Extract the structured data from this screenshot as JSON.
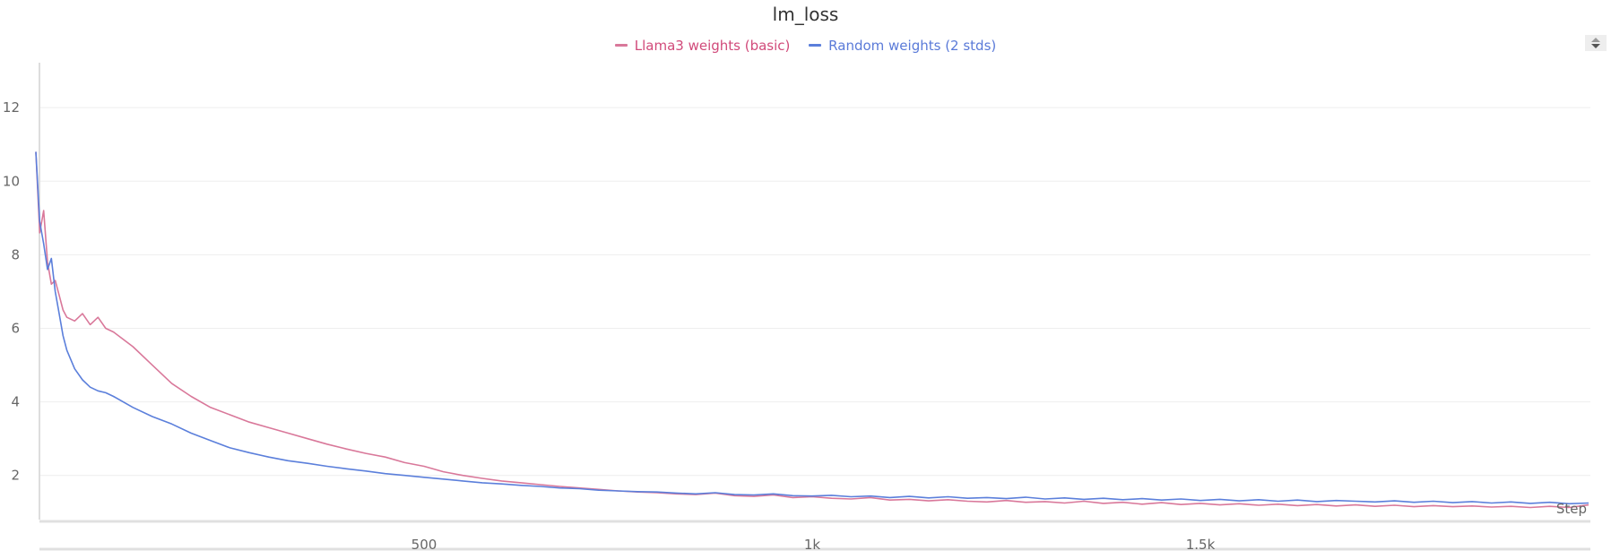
{
  "chart_data": {
    "type": "line",
    "title": "lm_loss",
    "xlabel": "Step",
    "ylabel": "",
    "xlim": [
      0,
      2000
    ],
    "ylim": [
      0.8,
      13.1
    ],
    "grid": true,
    "legend_position": "top-center",
    "x_ticks": [
      {
        "value": 500,
        "label": "500"
      },
      {
        "value": 1000,
        "label": "1k"
      },
      {
        "value": 1500,
        "label": "1.5k"
      }
    ],
    "y_ticks": [
      2,
      4,
      6,
      8,
      10,
      12
    ],
    "x": [
      0,
      5,
      10,
      15,
      20,
      25,
      30,
      35,
      40,
      50,
      60,
      70,
      80,
      90,
      100,
      125,
      150,
      175,
      200,
      225,
      250,
      275,
      300,
      325,
      350,
      375,
      400,
      425,
      450,
      475,
      500,
      525,
      550,
      575,
      600,
      625,
      650,
      675,
      700,
      725,
      750,
      775,
      800,
      825,
      850,
      875,
      900,
      925,
      950,
      975,
      1000,
      1025,
      1050,
      1075,
      1100,
      1125,
      1150,
      1175,
      1200,
      1225,
      1250,
      1275,
      1300,
      1325,
      1350,
      1375,
      1400,
      1425,
      1450,
      1475,
      1500,
      1525,
      1550,
      1575,
      1600,
      1625,
      1650,
      1675,
      1700,
      1725,
      1750,
      1775,
      1800,
      1825,
      1850,
      1875,
      1900,
      1925,
      1950,
      1975,
      2000
    ],
    "series": [
      {
        "name": "Llama3 weights (basic)",
        "color": "#d9789a",
        "values": [
          10.8,
          8.6,
          9.2,
          7.8,
          7.2,
          7.3,
          6.9,
          6.5,
          6.3,
          6.2,
          6.4,
          6.1,
          6.3,
          6.0,
          5.9,
          5.5,
          5.0,
          4.5,
          4.15,
          3.85,
          3.65,
          3.45,
          3.3,
          3.15,
          3.0,
          2.85,
          2.72,
          2.6,
          2.5,
          2.35,
          2.25,
          2.1,
          2.0,
          1.92,
          1.85,
          1.8,
          1.75,
          1.7,
          1.66,
          1.62,
          1.58,
          1.55,
          1.53,
          1.5,
          1.48,
          1.52,
          1.45,
          1.43,
          1.47,
          1.4,
          1.42,
          1.38,
          1.36,
          1.4,
          1.33,
          1.35,
          1.31,
          1.34,
          1.3,
          1.28,
          1.32,
          1.27,
          1.29,
          1.25,
          1.3,
          1.24,
          1.27,
          1.22,
          1.26,
          1.21,
          1.24,
          1.2,
          1.23,
          1.19,
          1.22,
          1.18,
          1.21,
          1.17,
          1.2,
          1.16,
          1.19,
          1.15,
          1.18,
          1.15,
          1.17,
          1.14,
          1.16,
          1.13,
          1.16,
          1.13,
          1.2
        ]
      },
      {
        "name": "Random weights (2 stds)",
        "color": "#5b7fdb",
        "values": [
          10.8,
          8.9,
          8.3,
          7.6,
          7.9,
          7.0,
          6.4,
          5.8,
          5.4,
          4.9,
          4.6,
          4.4,
          4.3,
          4.25,
          4.15,
          3.85,
          3.6,
          3.4,
          3.15,
          2.95,
          2.75,
          2.62,
          2.5,
          2.4,
          2.33,
          2.25,
          2.18,
          2.12,
          2.05,
          2.0,
          1.95,
          1.9,
          1.85,
          1.8,
          1.77,
          1.73,
          1.7,
          1.66,
          1.64,
          1.6,
          1.58,
          1.56,
          1.55,
          1.52,
          1.5,
          1.53,
          1.48,
          1.47,
          1.5,
          1.45,
          1.44,
          1.46,
          1.42,
          1.44,
          1.4,
          1.43,
          1.39,
          1.42,
          1.38,
          1.4,
          1.37,
          1.41,
          1.36,
          1.39,
          1.35,
          1.38,
          1.34,
          1.37,
          1.33,
          1.36,
          1.32,
          1.35,
          1.31,
          1.34,
          1.3,
          1.33,
          1.29,
          1.32,
          1.3,
          1.28,
          1.31,
          1.27,
          1.3,
          1.26,
          1.29,
          1.25,
          1.28,
          1.24,
          1.27,
          1.23,
          1.25
        ]
      }
    ]
  },
  "legend_text_colors": [
    "#d14a7a",
    "#5a7ad8"
  ],
  "controls": {
    "sort_icon": "sort-up-down-icon"
  }
}
